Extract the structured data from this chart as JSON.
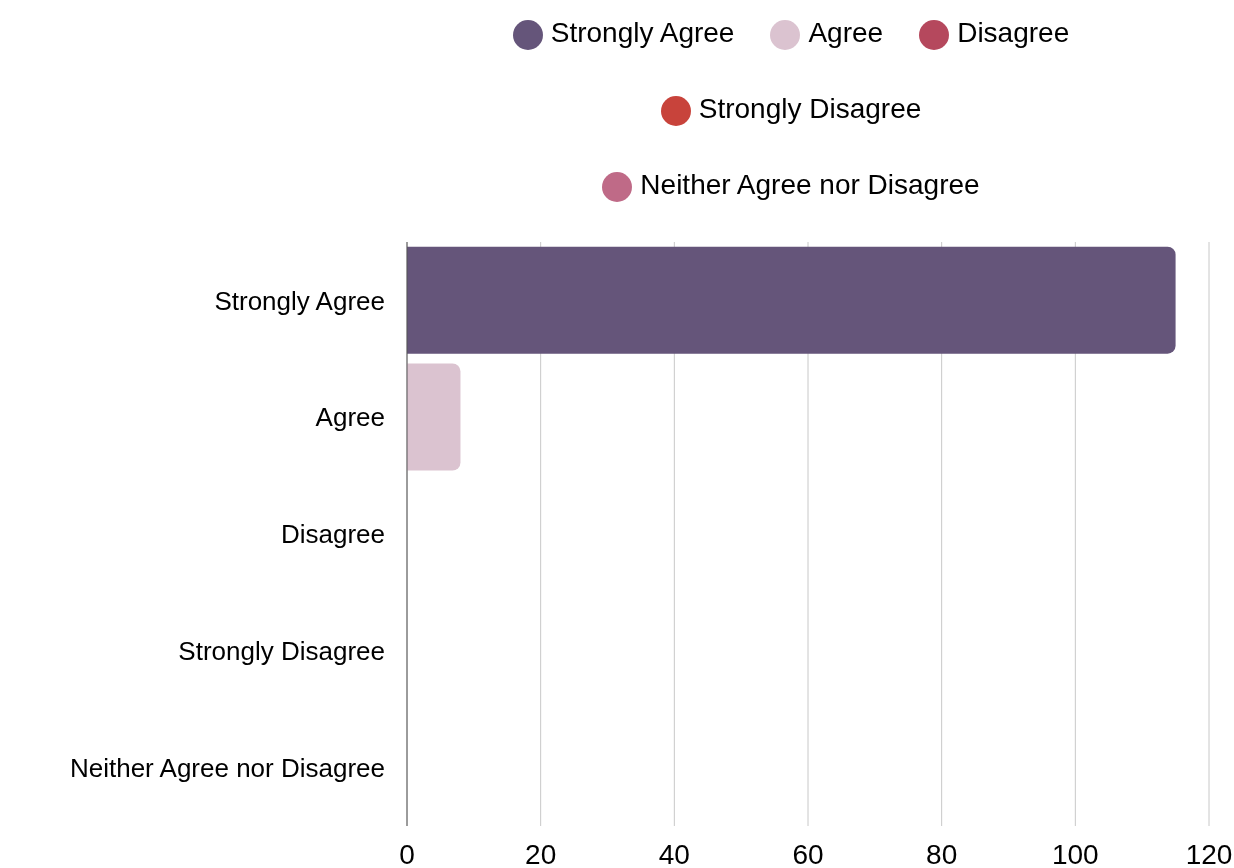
{
  "chart_data": {
    "type": "bar",
    "orientation": "horizontal",
    "stacked": true,
    "categories": [
      "Strongly Agree",
      "Agree",
      "Disagree",
      "Strongly Disagree",
      "Neither Agree nor Disagree"
    ],
    "series": [
      {
        "name": "Strongly Agree",
        "color": "#65557a",
        "values": [
          115,
          null,
          null,
          null,
          null
        ]
      },
      {
        "name": "Agree",
        "color": "#dbc3d0",
        "values": [
          null,
          8,
          null,
          null,
          null
        ]
      },
      {
        "name": "Disagree",
        "color": "#b5485d",
        "values": [
          null,
          null,
          0,
          null,
          null
        ]
      },
      {
        "name": "Strongly Disagree",
        "color": "#c8433b",
        "values": [
          null,
          null,
          null,
          0,
          null
        ]
      },
      {
        "name": "Neither Agree nor Disagree",
        "color": "#bf6a87",
        "values": [
          null,
          null,
          null,
          null,
          0
        ]
      }
    ],
    "xlim": [
      0,
      120
    ],
    "xticks": [
      0,
      20,
      40,
      60,
      80,
      100,
      120
    ],
    "grid": "x",
    "legend": "top"
  }
}
